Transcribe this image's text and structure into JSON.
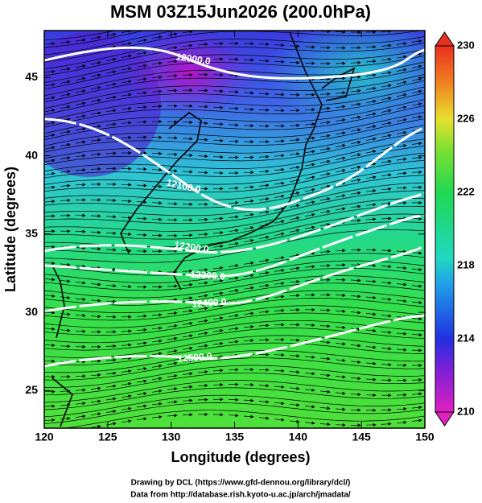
{
  "map": {
    "title": "MSM 03Z15Jun2026 (200.0hPa)",
    "x_label": "Longitude (degrees)",
    "y_label": "Latitude  (degrees)",
    "xlim": [
      120,
      150
    ],
    "ylim": [
      22.6,
      48
    ],
    "xticks": [
      120,
      125,
      130,
      135,
      140,
      145,
      150
    ],
    "yticks": [
      25,
      30,
      35,
      40,
      45
    ],
    "colorbar": {
      "lim": [
        210,
        230
      ],
      "ticks": [
        210,
        214,
        218,
        222,
        226,
        230
      ]
    },
    "contours": [
      {
        "label": "12000.0"
      },
      {
        "label": "12100.0"
      },
      {
        "label": "12200.0"
      },
      {
        "label": "12300.0"
      },
      {
        "label": "12400.0"
      },
      {
        "label": "12500.0"
      }
    ],
    "footer": [
      "Drawing by DCL (https://www.gfd-dennou.org/library/dcl/)",
      "Data from http://database.rish.kyoto-u.ac.jp/arch/jmadata/"
    ]
  }
}
